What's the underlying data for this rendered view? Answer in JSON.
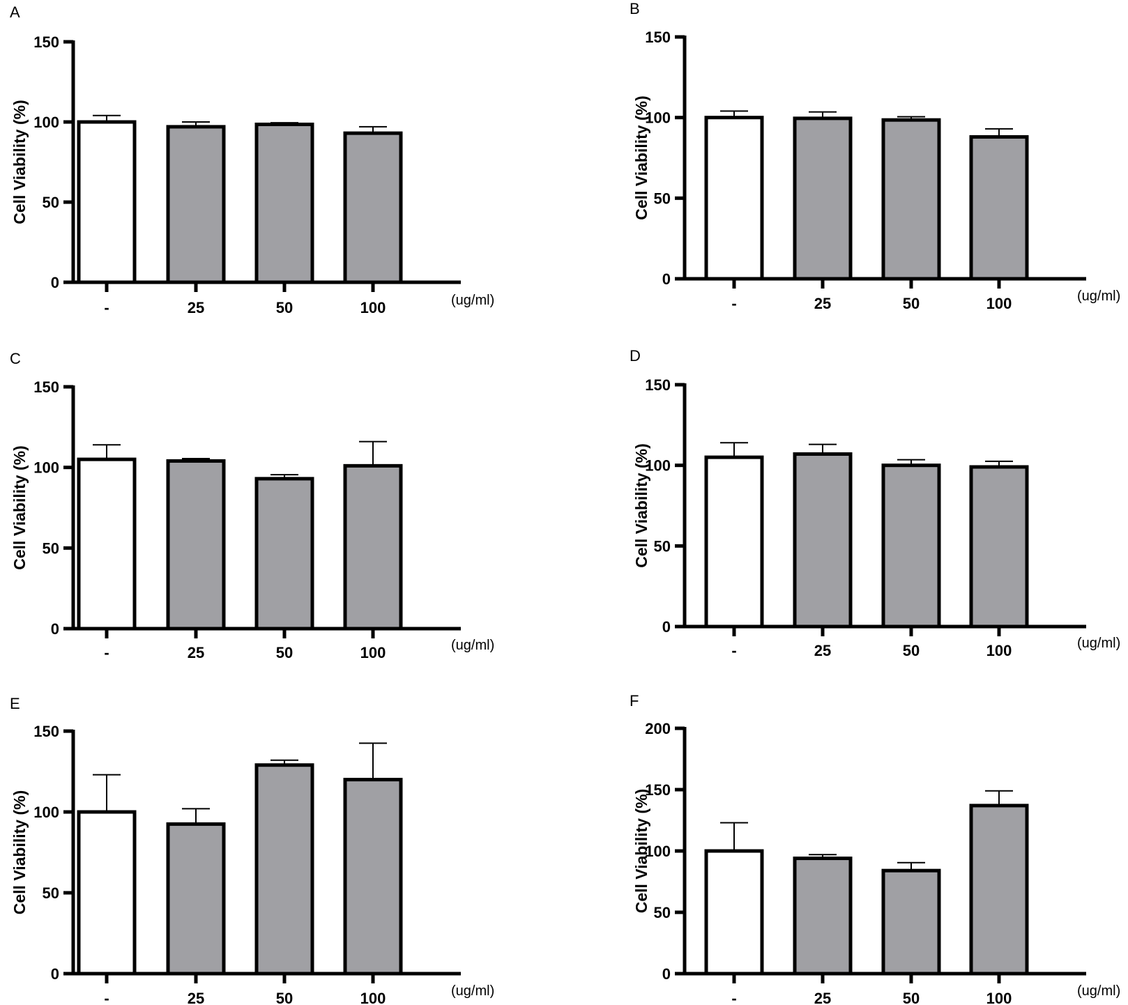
{
  "colors": {
    "control_fill": "#ffffff",
    "treated_fill": "#a0a0a4",
    "stroke": "#000000"
  },
  "chart_data": [
    {
      "panel": "A",
      "type": "bar",
      "categories": [
        "-",
        "25",
        "50",
        "100"
      ],
      "values": [
        100,
        97,
        98.5,
        93
      ],
      "errors": [
        4,
        3,
        1,
        4
      ],
      "ylabel": "Cell Viability (%)",
      "xunit": "(ug/ml)",
      "ylim": [
        0,
        150
      ],
      "yticks": [
        0,
        50,
        100,
        150
      ]
    },
    {
      "panel": "B",
      "type": "bar",
      "categories": [
        "-",
        "25",
        "50",
        "100"
      ],
      "values": [
        100,
        99.5,
        98.5,
        88
      ],
      "errors": [
        4,
        4,
        2,
        5
      ],
      "ylabel": "Cell Viability (%)",
      "xunit": "(ug/ml)",
      "ylim": [
        0,
        150
      ],
      "yticks": [
        0,
        50,
        100,
        150
      ]
    },
    {
      "panel": "C",
      "type": "bar",
      "categories": [
        "-",
        "25",
        "50",
        "100"
      ],
      "values": [
        105,
        104,
        93,
        101
      ],
      "errors": [
        9,
        1.5,
        2.5,
        15
      ],
      "ylabel": "Cell Viability (%)",
      "xunit": "(ug/ml)",
      "ylim": [
        0,
        150
      ],
      "yticks": [
        0,
        50,
        100,
        150
      ]
    },
    {
      "panel": "D",
      "type": "bar",
      "categories": [
        "-",
        "25",
        "50",
        "100"
      ],
      "values": [
        105,
        107,
        100,
        99
      ],
      "errors": [
        9,
        6,
        3.5,
        3.5
      ],
      "ylabel": "Cell Viability (%)",
      "xunit": "(ug/ml)",
      "ylim": [
        0,
        150
      ],
      "yticks": [
        0,
        50,
        100,
        150
      ]
    },
    {
      "panel": "E",
      "type": "bar",
      "categories": [
        "-",
        "25",
        "50",
        "100"
      ],
      "values": [
        100,
        92.5,
        129,
        120
      ],
      "errors": [
        23,
        9.5,
        3,
        22.5
      ],
      "ylabel": "Cell Viability (%)",
      "xunit": "(ug/ml)",
      "ylim": [
        0,
        150
      ],
      "yticks": [
        0,
        50,
        100,
        150
      ]
    },
    {
      "panel": "F",
      "type": "bar",
      "categories": [
        "-",
        "25",
        "50",
        "100"
      ],
      "values": [
        100,
        94,
        84,
        137
      ],
      "errors": [
        23,
        3,
        6.5,
        12
      ],
      "ylabel": "Cell Viability (%)",
      "xunit": "(ug/ml)",
      "ylim": [
        0,
        200
      ],
      "yticks": [
        0,
        50,
        100,
        150,
        200
      ]
    }
  ]
}
